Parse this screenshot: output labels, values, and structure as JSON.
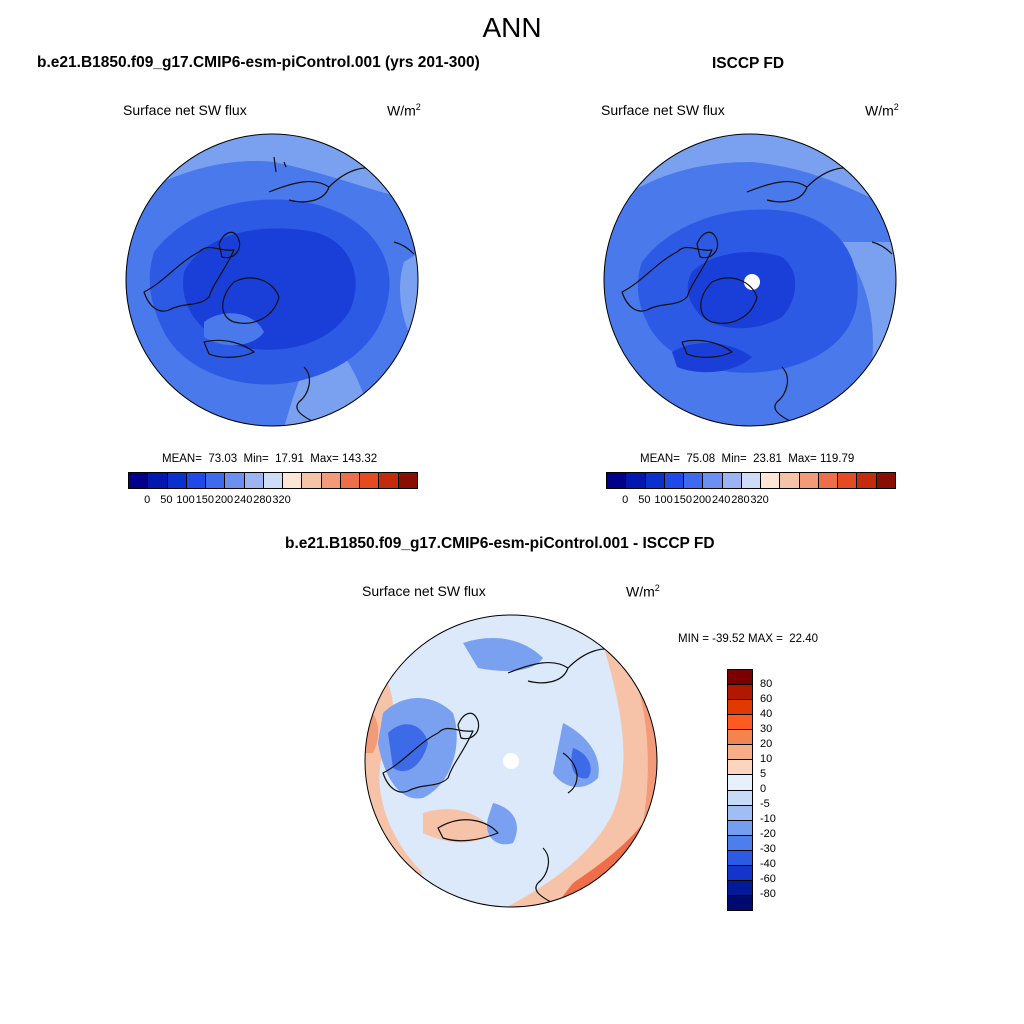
{
  "season": "ANN",
  "panels": {
    "model": {
      "title": "b.e21.B1850.f09_g17.CMIP6-esm-piControl.001 (yrs 201-300)",
      "variable": "Surface net SW flux",
      "units_base": "W/m",
      "units_exp": "2",
      "stats": "MEAN=  73.03  Min=  17.91  Max= 143.32"
    },
    "obs": {
      "title": "ISCCP FD",
      "variable": "Surface net SW flux",
      "units_base": "W/m",
      "units_exp": "2",
      "stats": "MEAN=  75.08  Min=  23.81  Max= 119.79"
    },
    "diff": {
      "title": "b.e21.B1850.f09_g17.CMIP6-esm-piControl.001 - ISCCP FD",
      "variable": "Surface net SW flux",
      "units_base": "W/m",
      "units_exp": "2",
      "stats": "MIN = -39.52 MAX =  22.40"
    }
  },
  "colorbar_main": {
    "colors": [
      "#00008b",
      "#0018b0",
      "#0a30d0",
      "#1f4ae8",
      "#3e6af0",
      "#6c8ff2",
      "#9cb4f4",
      "#cddcf7",
      "#fde6d6",
      "#f7c3a8",
      "#f39a78",
      "#ee6e4a",
      "#e54a20",
      "#c42a0c",
      "#8a0f00"
    ],
    "tick_labels": [
      "0",
      "50",
      "100",
      "150",
      "200",
      "240",
      "280",
      "320"
    ]
  },
  "colorbar_diff": {
    "colors": [
      "#7a0000",
      "#b21800",
      "#e03a00",
      "#ff5a20",
      "#f5834f",
      "#f7ae86",
      "#fbd5bd",
      "#e6f1fb",
      "#c6dbf7",
      "#9ebef4",
      "#749ff0",
      "#4d7eec",
      "#2d5ae4",
      "#1235cc",
      "#001a9a",
      "#000a6e"
    ],
    "tick_labels": [
      "80",
      "60",
      "40",
      "30",
      "20",
      "10",
      "5",
      "0",
      "-5",
      "-10",
      "-20",
      "-30",
      "-40",
      "-60",
      "-80"
    ]
  },
  "map_colors": {
    "deep": "#1a3fd8",
    "mid": "#2d5ae4",
    "light": "#4a79ec",
    "pale": "#7aa0f0",
    "diff_neutral": "#dbe9fa",
    "diff_blue": "#7aa0f0",
    "diff_darkblue": "#3d6be8",
    "diff_warm": "#f7c3a8",
    "diff_hot": "#f39a78",
    "diff_orange": "#ee6e4a"
  }
}
